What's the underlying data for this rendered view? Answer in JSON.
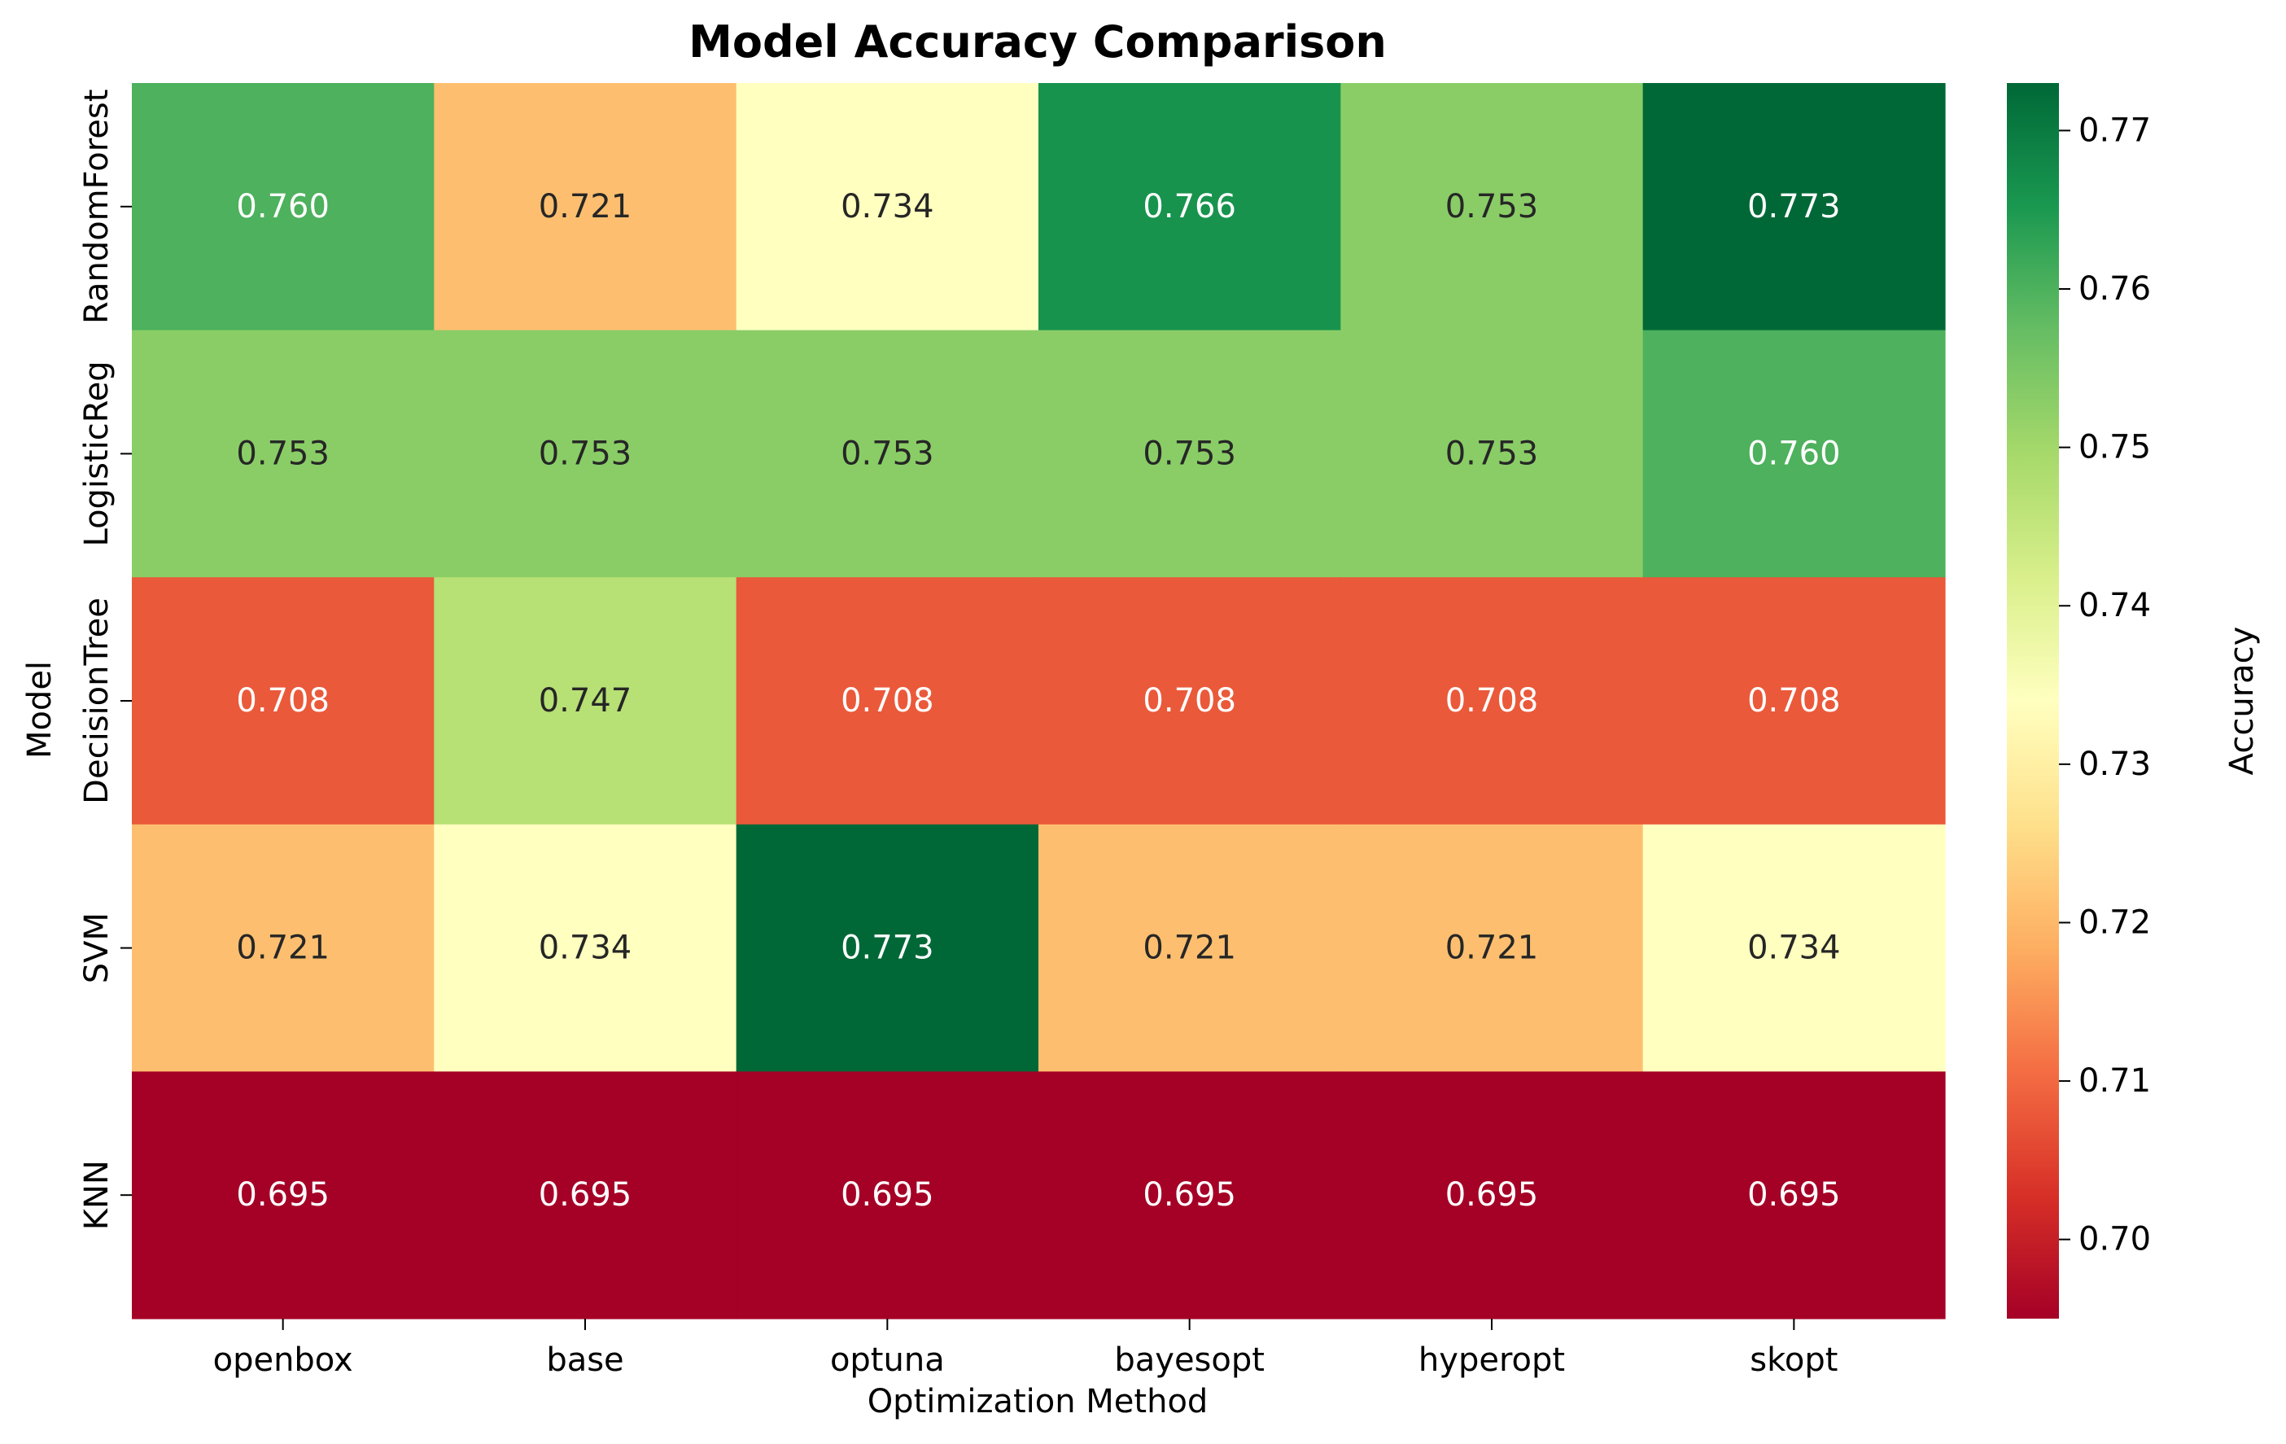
{
  "chart_data": {
    "type": "heatmap",
    "title": "Model Accuracy Comparison",
    "xlabel": "Optimization Method",
    "ylabel": "Model",
    "colorbar_label": "Accuracy",
    "x_categories": [
      "openbox",
      "base",
      "optuna",
      "bayesopt",
      "hyperopt",
      "skopt"
    ],
    "y_categories": [
      "RandomForest",
      "LogisticReg",
      "DecisionTree",
      "SVM",
      "KNN"
    ],
    "values": [
      [
        0.76,
        0.721,
        0.734,
        0.766,
        0.753,
        0.773
      ],
      [
        0.753,
        0.753,
        0.753,
        0.753,
        0.753,
        0.76
      ],
      [
        0.708,
        0.747,
        0.708,
        0.708,
        0.708,
        0.708
      ],
      [
        0.721,
        0.734,
        0.773,
        0.721,
        0.721,
        0.734
      ],
      [
        0.695,
        0.695,
        0.695,
        0.695,
        0.695,
        0.695
      ]
    ],
    "cell_labels": [
      [
        "0.760",
        "0.721",
        "0.734",
        "0.766",
        "0.753",
        "0.773"
      ],
      [
        "0.753",
        "0.753",
        "0.753",
        "0.753",
        "0.753",
        "0.760"
      ],
      [
        "0.708",
        "0.747",
        "0.708",
        "0.708",
        "0.708",
        "0.708"
      ],
      [
        "0.721",
        "0.734",
        "0.773",
        "0.721",
        "0.721",
        "0.734"
      ],
      [
        "0.695",
        "0.695",
        "0.695",
        "0.695",
        "0.695",
        "0.695"
      ]
    ],
    "colormap": "RdYlGn",
    "color_range": [
      0.695,
      0.773
    ],
    "colorbar_ticks": [
      0.7,
      0.71,
      0.72,
      0.73,
      0.74,
      0.75,
      0.76,
      0.77
    ],
    "colorbar_tick_labels": [
      "0.70",
      "0.71",
      "0.72",
      "0.73",
      "0.74",
      "0.75",
      "0.76",
      "0.77"
    ],
    "grid": false,
    "colorbar_position": "right"
  }
}
